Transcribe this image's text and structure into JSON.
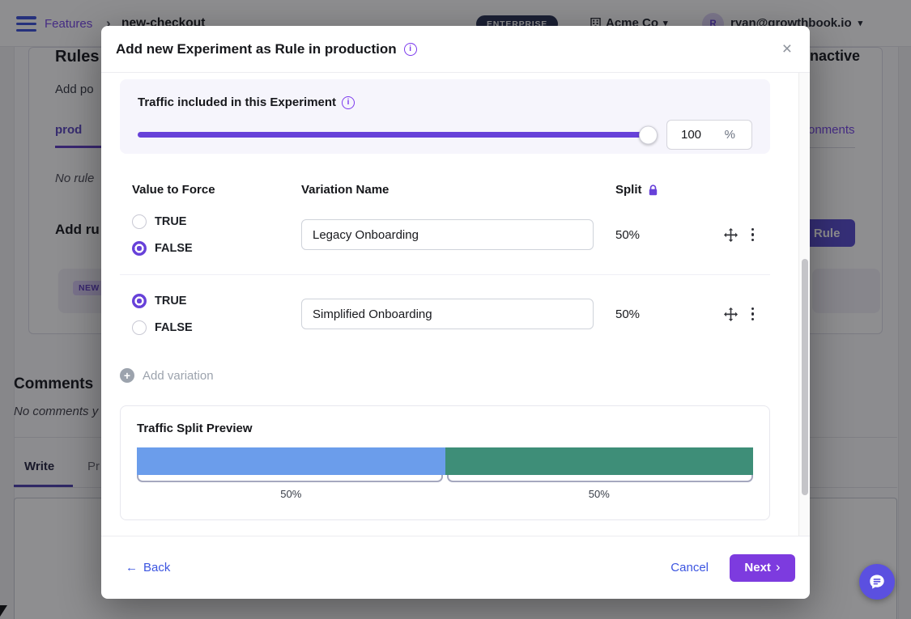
{
  "navbar": {
    "features_link": "Features",
    "breadcrumb_sep": "›",
    "feature_name": "new-checkout",
    "plan_badge": "ENTERPRISE",
    "org_name": "Acme Co",
    "org_caret": "▾",
    "avatar_initial": "R",
    "user_email": "ryan@growthbook.io",
    "user_caret": "▾"
  },
  "page": {
    "rules_heading": "Rules",
    "rules_description_fragment": "Add po",
    "env_tab_fragment": "prod",
    "no_rules_fragment": "No rule",
    "add_rule_heading_fragment": "Add ru",
    "rule_button_fragment": "l Rule",
    "new_badge": "NEW",
    "status_fragment": "nactive",
    "environments_link_fragment": "onments",
    "comments_heading": "Comments",
    "no_comments_fragment": "No comments y",
    "tab_write": "Write",
    "tab_preview_fragment": "Pr"
  },
  "modal": {
    "title": "Add new Experiment as Rule in production",
    "close": "×",
    "info_glyph": "i",
    "traffic": {
      "label": "Traffic included in this Experiment",
      "value": "100",
      "unit": "%"
    },
    "table": {
      "col_value": "Value to Force",
      "col_name": "Variation Name",
      "col_split": "Split"
    },
    "rows": [
      {
        "options": [
          "TRUE",
          "FALSE"
        ],
        "selected": "FALSE",
        "name": "Legacy Onboarding",
        "split": "50%"
      },
      {
        "options": [
          "TRUE",
          "FALSE"
        ],
        "selected": "TRUE",
        "name": "Simplified Onboarding",
        "split": "50%"
      }
    ],
    "add_variation_label": "Add variation",
    "preview": {
      "title": "Traffic Split Preview",
      "segments": [
        {
          "label": "50%",
          "value": 50,
          "color": "#6b9deb"
        },
        {
          "label": "50%",
          "value": 50,
          "color": "#3e8e78"
        }
      ]
    },
    "footer": {
      "back_arrow": "←",
      "back": "Back",
      "cancel": "Cancel",
      "next": "Next",
      "next_chevron": "›"
    }
  },
  "colors": {
    "accent_purple": "#6741d9",
    "button_purple": "#7d3bdf",
    "link_blue": "#3c55e0",
    "bar_blue": "#6b9deb",
    "bar_green": "#3e8e78"
  }
}
